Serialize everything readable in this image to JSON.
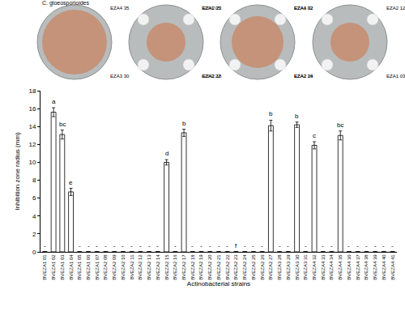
{
  "chart_data": {
    "type": "bar",
    "xlabel": "Actinobacterial strains",
    "ylabel": "Inhibition zone radius (mm)",
    "categories": [
      "BVEZA1 01",
      "BVEZA1 02",
      "BVEZA1 03",
      "BVEZA1 04",
      "BVEZA1 05",
      "BVEZA1 06",
      "BVEZA1 07",
      "BVEZA2 08",
      "BVEZA2 09",
      "BVEZA2 10",
      "BVEZA2 11",
      "BVEZA2 12",
      "BVEZA2 13",
      "BVEZA2 14",
      "BVEZA2 15",
      "BVEZA2 16",
      "BVEZA2 17",
      "BVEZA2 18",
      "BVEZA2 19",
      "BVEZA2 20",
      "BVEZA2 21",
      "BVEZA2 22",
      "BVEZA2 23",
      "BVEZA2 24",
      "BVEZA2 25",
      "BVEZA2 26",
      "BVEZA2 27",
      "BVEZA3 28",
      "BVEZA3 29",
      "BVEZA3 30",
      "BVEZA3 31",
      "BVEZA4 32",
      "BVEZA4 33",
      "BVEZA4 34",
      "BVEZA4 35",
      "BVEZA4 36",
      "BVEZA4 37",
      "BVEZA4 38",
      "BVEZA4 39",
      "BVEZA4 40",
      "BVEZA4 41"
    ],
    "values": [
      0,
      15.6,
      13.1,
      6.7,
      0,
      0,
      0,
      0,
      0,
      0,
      0,
      0,
      0,
      0,
      10.0,
      0,
      13.3,
      0,
      0,
      0,
      0,
      0,
      0,
      0,
      0,
      0,
      14.1,
      0,
      0,
      14.2,
      0,
      11.9,
      0,
      0,
      13.0,
      0,
      0,
      0,
      0,
      0,
      0
    ],
    "errors": [
      0,
      0.5,
      0.5,
      0.4,
      0,
      0,
      0,
      0,
      0,
      0,
      0,
      0,
      0,
      0,
      0.3,
      0,
      0.4,
      0,
      0,
      0,
      0,
      0,
      0,
      0,
      0,
      0,
      0.6,
      0,
      0,
      0.3,
      0,
      0.4,
      0,
      0,
      0.5,
      0,
      0,
      0,
      0,
      0,
      0
    ],
    "value_labels": [
      "-",
      "a",
      "bc",
      "e",
      "-",
      "-",
      "-",
      "-",
      "-",
      "-",
      "-",
      "-",
      "-",
      "-",
      "d",
      "-",
      "b",
      "-",
      "-",
      "-",
      "-",
      "-",
      "f",
      "-",
      "-",
      "-",
      "b",
      "-",
      "-",
      "b",
      "-",
      "c",
      "-",
      "-",
      "bc",
      "-",
      "-",
      "-",
      "-",
      "-",
      "-"
    ],
    "data_labels": true,
    "color": "#ffffff",
    "ylim": [
      0,
      18
    ],
    "yticks": [
      0,
      2,
      4,
      6,
      8,
      10,
      12,
      14,
      16,
      18
    ],
    "grid": false,
    "annotations": [
      "C. gloeosporioides",
      "EZA4 35",
      "EZA2 23",
      "EZA3 30",
      "EZA2 18",
      "EZA1 05",
      "EZA4 32",
      "EZA2 22",
      "EZA2 24",
      "EZA1 02",
      "EZA2 12",
      "EZA2 16",
      "EZA1 03"
    ]
  }
}
